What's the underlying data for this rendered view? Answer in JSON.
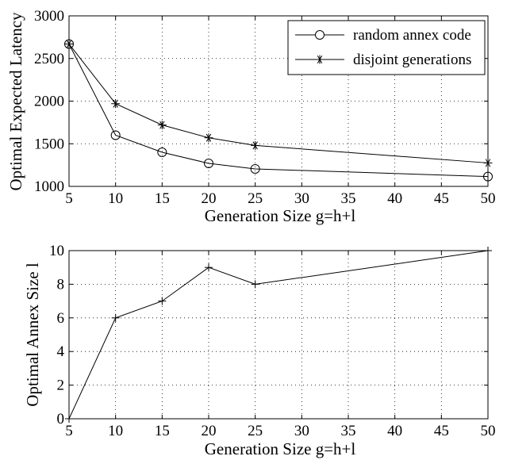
{
  "chart_data": [
    {
      "type": "line",
      "title": "",
      "xlabel": "Generation Size g=h+l",
      "ylabel": "Optimal Expected Latency",
      "xlim": [
        5,
        50
      ],
      "ylim": [
        1000,
        3000
      ],
      "xticks": [
        5,
        10,
        15,
        20,
        25,
        30,
        35,
        40,
        45,
        50
      ],
      "yticks": [
        1000,
        1500,
        2000,
        2500,
        3000
      ],
      "grid": true,
      "legend_position": "top-right",
      "x": [
        5,
        10,
        15,
        20,
        25,
        50
      ],
      "series": [
        {
          "name": "random annex code",
          "marker": "circle",
          "values": [
            2670,
            1600,
            1400,
            1270,
            1205,
            1115
          ]
        },
        {
          "name": "disjoint generations",
          "marker": "star",
          "values": [
            2670,
            1970,
            1720,
            1570,
            1480,
            1275
          ]
        }
      ]
    },
    {
      "type": "line",
      "title": "",
      "xlabel": "Generation Size g=h+l",
      "ylabel": "Optimal Annex Size l",
      "xlim": [
        5,
        50
      ],
      "ylim": [
        0,
        10
      ],
      "xticks": [
        5,
        10,
        15,
        20,
        25,
        30,
        35,
        40,
        45,
        50
      ],
      "yticks": [
        0,
        2,
        4,
        6,
        8,
        10
      ],
      "grid": true,
      "x": [
        5,
        10,
        15,
        20,
        25,
        50
      ],
      "series": [
        {
          "marker": "plus",
          "values": [
            0,
            6,
            7,
            9,
            8,
            10
          ]
        }
      ]
    }
  ],
  "colors": {
    "line": "#000000",
    "grid": "#000000",
    "background": "#ffffff"
  }
}
